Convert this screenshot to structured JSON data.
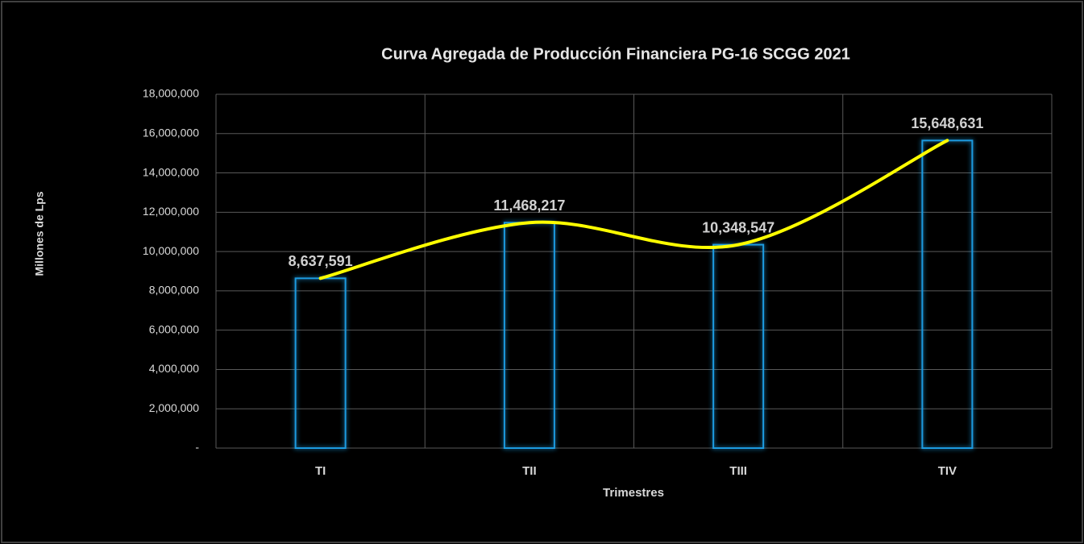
{
  "chart_data": {
    "type": "bar",
    "title": "Curva Agregada de Producción Financiera PG-16 SCGG 2021",
    "x_label": "Trimestres",
    "y_label": "Millones de Lps",
    "categories": [
      "TI",
      "TII",
      "TIII",
      "TIV"
    ],
    "values": [
      8637591,
      11468217,
      10348547,
      15648631
    ],
    "value_labels": [
      "8,637,591",
      "11,468,217",
      "10,348,547",
      "15,648,631"
    ],
    "color": "#1f9be0",
    "line_color": "#ffff00",
    "ylim": [
      0,
      18000000
    ],
    "yticks": [
      {
        "value": 0,
        "label": "-"
      },
      {
        "value": 2000000,
        "label": "2,000,000"
      },
      {
        "value": 4000000,
        "label": "4,000,000"
      },
      {
        "value": 6000000,
        "label": "6,000,000"
      },
      {
        "value": 8000000,
        "label": "8,000,000"
      },
      {
        "value": 10000000,
        "label": "10,000,000"
      },
      {
        "value": 12000000,
        "label": "12,000,000"
      },
      {
        "value": 14000000,
        "label": "14,000,000"
      },
      {
        "value": 16000000,
        "label": "16,000,000"
      },
      {
        "value": 18000000,
        "label": "18,000,000"
      }
    ],
    "grid": true
  }
}
